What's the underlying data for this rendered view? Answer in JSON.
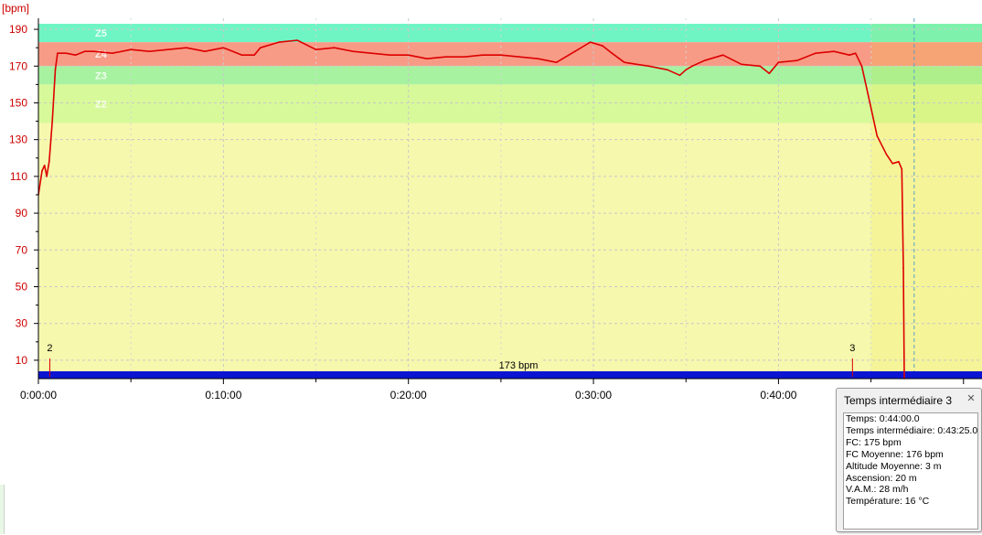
{
  "chart_data": {
    "type": "line",
    "y_unit_label": "[bpm]",
    "ylim": [
      0,
      196
    ],
    "xlim_seconds": [
      0,
      3060
    ],
    "y_ticks": [
      10,
      30,
      50,
      70,
      90,
      110,
      130,
      150,
      170,
      190
    ],
    "x_ticks": [
      {
        "seconds": 0,
        "label": "0:00:00"
      },
      {
        "seconds": 600,
        "label": "0:10:00"
      },
      {
        "seconds": 1200,
        "label": "0:20:00"
      },
      {
        "seconds": 1800,
        "label": "0:30:00"
      },
      {
        "seconds": 2400,
        "label": "0:40:00"
      }
    ],
    "grid": true,
    "zones": [
      {
        "name": "Z5",
        "from": 183,
        "to": 193,
        "color": "#6ff5c4",
        "label_color": "#ffffff"
      },
      {
        "name": "Z4",
        "from": 170,
        "to": 183,
        "color": "#f79b86",
        "label_color": "#ffffff"
      },
      {
        "name": "Z3",
        "from": 160,
        "to": 170,
        "color": "#a6f2a0",
        "label_color": "#ffffff"
      },
      {
        "name": "Z2",
        "from": 139,
        "to": 160,
        "color": "#d7f99a",
        "label_color": "#ffffff"
      },
      {
        "name": "",
        "from": 0,
        "to": 139,
        "color": "#f6f8ad",
        "label_color": "#ffffff"
      }
    ],
    "series": [
      {
        "color": "#dd0000",
        "x": [
          0,
          12,
          20,
          27,
          35,
          45,
          55,
          62,
          72,
          90,
          120,
          150,
          180,
          240,
          300,
          360,
          420,
          480,
          540,
          600,
          660,
          700,
          720,
          780,
          840,
          900,
          960,
          1020,
          1080,
          1140,
          1200,
          1260,
          1320,
          1380,
          1440,
          1500,
          1560,
          1620,
          1680,
          1740,
          1790,
          1830,
          1860,
          1900,
          1940,
          1980,
          2040,
          2080,
          2100,
          2120,
          2160,
          2220,
          2280,
          2340,
          2370,
          2400,
          2460,
          2520,
          2580,
          2630,
          2650,
          2670,
          2690,
          2720,
          2750,
          2770,
          2790,
          2800,
          2805,
          2808
        ],
        "y": [
          100,
          113,
          116,
          110,
          118,
          140,
          168,
          177,
          177,
          177,
          176,
          178,
          178,
          177,
          179,
          178,
          179,
          180,
          178,
          180,
          176,
          176,
          180,
          183,
          184,
          179,
          180,
          178,
          177,
          176,
          176,
          174,
          175,
          175,
          176,
          176,
          175,
          174,
          172,
          178,
          183,
          181,
          177,
          172,
          171,
          170,
          168,
          165,
          168,
          170,
          173,
          176,
          171,
          170,
          166,
          172,
          173,
          177,
          178,
          176,
          177,
          170,
          155,
          132,
          122,
          117,
          118,
          114,
          60,
          0
        ]
      }
    ],
    "markers": [
      {
        "label": "2",
        "seconds": 37
      },
      {
        "label": "3",
        "seconds": 2640
      }
    ],
    "bottom_bar_label": "173 bpm",
    "bottom_bar_color": "#0a14d2",
    "cursor_seconds": 2840,
    "highlight_from_seconds": 2700
  },
  "tooltip": {
    "title": "Temps intermédiaire 3",
    "close_glyph": "✕",
    "lines": [
      "Temps: 0:44:00.0",
      "Temps intermédiaire: 0:43:25.0",
      "FC: 175 bpm",
      "FC Moyenne:  176 bpm",
      "Altitude Moyenne:  3 m",
      "Ascension:  20 m",
      "V.A.M.: 28 m/h",
      "Température: 16 °C"
    ]
  }
}
